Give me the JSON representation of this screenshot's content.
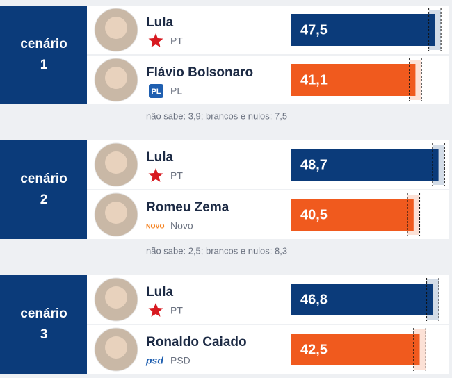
{
  "scenarios": [
    {
      "label": "cenário",
      "number": "1",
      "candidates": [
        {
          "name": "Lula",
          "party": "PT",
          "logo": null,
          "value": 47.5,
          "value_label": "47,5",
          "error": 2,
          "color": "#0b3b7a"
        },
        {
          "name": "Flávio Bolsonaro",
          "party": "PL",
          "logo": "PL",
          "value": 41.1,
          "value_label": "41,1",
          "error": 2,
          "color": "#f05a1e"
        }
      ],
      "note": "não sabe: 3,9; brancos e nulos: 7,5"
    },
    {
      "label": "cenário",
      "number": "2",
      "candidates": [
        {
          "name": "Lula",
          "party": "PT",
          "logo": null,
          "value": 48.7,
          "value_label": "48,7",
          "error": 2,
          "color": "#0b3b7a"
        },
        {
          "name": "Romeu Zema",
          "party": "Novo",
          "logo": "NOVO",
          "value": 40.5,
          "value_label": "40,5",
          "error": 2,
          "color": "#f05a1e"
        }
      ],
      "note": "não sabe: 2,5; brancos e nulos: 8,3"
    },
    {
      "label": "cenário",
      "number": "3",
      "candidates": [
        {
          "name": "Lula",
          "party": "PT",
          "logo": null,
          "value": 46.8,
          "value_label": "46,8",
          "error": 2,
          "color": "#0b3b7a"
        },
        {
          "name": "Ronaldo Caiado",
          "party": "PSD",
          "logo": "psd",
          "value": 42.5,
          "value_label": "42,5",
          "error": 2,
          "color": "#f05a1e"
        }
      ],
      "note": null
    }
  ],
  "xlim": [
    0,
    52
  ]
}
